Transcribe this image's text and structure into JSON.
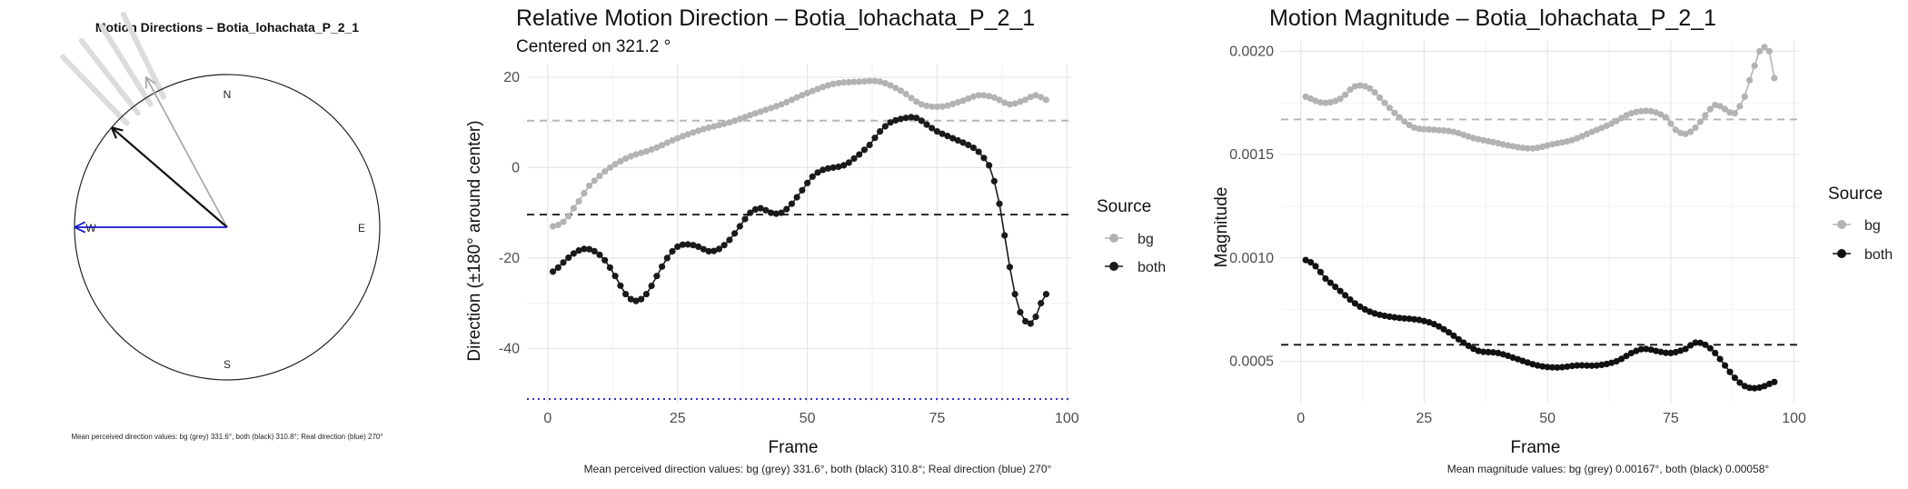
{
  "chart_data": [
    {
      "type": "polar-arrows",
      "title": "Motion Directions – Botia_lohachata_P_2_1",
      "compass_labels": [
        "N",
        "E",
        "S",
        "W"
      ],
      "arrows": [
        {
          "name": "bg",
          "angle_deg": 331.6,
          "color": "#aaaaaa"
        },
        {
          "name": "both",
          "angle_deg": 310.8,
          "color": "#111111"
        },
        {
          "name": "real",
          "angle_deg": 270,
          "color": "#1515c8"
        }
      ],
      "faint_traces_deg": [
        316,
        322,
        328,
        334
      ],
      "caption": "Mean perceived direction values: bg (grey) 331.6°, both (black) 310.8°; Real direction (blue) 270°"
    },
    {
      "type": "line",
      "title": "Relative Motion Direction – Botia_lohachata_P_2_1",
      "subtitle": "Centered on  321.2 °",
      "xlabel": "Frame",
      "ylabel": "Direction (±180° around center)",
      "xlim": [
        -4,
        101
      ],
      "ylim": [
        -52,
        23
      ],
      "xticks": [
        0,
        25,
        50,
        75,
        100
      ],
      "yticks": [
        20,
        0,
        -20,
        -40
      ],
      "legend_title": "Source",
      "hlines": [
        {
          "y": 10.4,
          "color": "#b3b3b3",
          "style": "dashed"
        },
        {
          "y": -10.4,
          "color": "#111111",
          "style": "dashed"
        },
        {
          "y": -51.2,
          "color": "#1515c8",
          "style": "dotted"
        }
      ],
      "series": [
        {
          "name": "bg",
          "color": "#b3b3b3",
          "x_start": 1,
          "knots": [
            [
              1,
              -13
            ],
            [
              3,
              -12
            ],
            [
              5,
              -9
            ],
            [
              8,
              -4
            ],
            [
              12,
              0
            ],
            [
              16,
              2.5
            ],
            [
              20,
              4
            ],
            [
              25,
              6.5
            ],
            [
              30,
              8.5
            ],
            [
              35,
              10
            ],
            [
              40,
              12
            ],
            [
              45,
              14
            ],
            [
              50,
              16.5
            ],
            [
              55,
              18.5
            ],
            [
              60,
              19
            ],
            [
              64,
              19
            ],
            [
              68,
              17
            ],
            [
              72,
              14
            ],
            [
              76,
              13.5
            ],
            [
              80,
              14.8
            ],
            [
              83,
              16
            ],
            [
              86,
              15.5
            ],
            [
              89,
              14
            ],
            [
              92,
              15
            ],
            [
              94,
              16
            ],
            [
              96,
              15
            ]
          ]
        },
        {
          "name": "both",
          "color": "#1a1a1a",
          "x_start": 1,
          "knots": [
            [
              1,
              -23
            ],
            [
              3,
              -21
            ],
            [
              5,
              -19
            ],
            [
              7,
              -18
            ],
            [
              9,
              -18.5
            ],
            [
              11,
              -20.5
            ],
            [
              13,
              -24
            ],
            [
              15,
              -28
            ],
            [
              17,
              -29.5
            ],
            [
              19,
              -28
            ],
            [
              21,
              -24
            ],
            [
              23,
              -20
            ],
            [
              25,
              -17.5
            ],
            [
              27,
              -17
            ],
            [
              29,
              -17.5
            ],
            [
              31,
              -18.5
            ],
            [
              33,
              -18
            ],
            [
              35,
              -16
            ],
            [
              37,
              -13
            ],
            [
              39,
              -10
            ],
            [
              41,
              -9
            ],
            [
              43,
              -10
            ],
            [
              45,
              -10
            ],
            [
              47,
              -8
            ],
            [
              49,
              -5
            ],
            [
              51,
              -2
            ],
            [
              53,
              -0.5
            ],
            [
              55,
              0
            ],
            [
              57,
              0.5
            ],
            [
              59,
              2
            ],
            [
              62,
              5
            ],
            [
              64,
              8
            ],
            [
              66,
              10
            ],
            [
              69,
              11
            ],
            [
              71,
              11
            ],
            [
              73,
              9.5
            ],
            [
              75,
              8
            ],
            [
              77,
              7
            ],
            [
              79,
              6
            ],
            [
              81,
              5
            ],
            [
              83,
              3.5
            ],
            [
              85,
              0.5
            ],
            [
              86,
              -3
            ],
            [
              87,
              -8
            ],
            [
              88,
              -15
            ],
            [
              89,
              -22
            ],
            [
              90,
              -28
            ],
            [
              91,
              -32
            ],
            [
              92,
              -34
            ],
            [
              93,
              -34.5
            ],
            [
              94,
              -33
            ],
            [
              95,
              -30
            ],
            [
              96,
              -28
            ]
          ]
        }
      ],
      "caption": "Mean perceived direction values: bg (grey) 331.6°, both (black) 310.8°; Real direction (blue) 270°"
    },
    {
      "type": "line",
      "title": "Motion Magnitude – Botia_lohachata_P_2_1",
      "xlabel": "Frame",
      "ylabel": "Magnitude",
      "xlim": [
        -4,
        101
      ],
      "ylim": [
        0.0003,
        0.00205
      ],
      "xticks": [
        0,
        25,
        50,
        75,
        100
      ],
      "yticks": [
        0.002,
        0.0015,
        0.001,
        0.0005
      ],
      "legend_title": "Source",
      "hlines": [
        {
          "y": 0.00167,
          "color": "#b3b3b3",
          "style": "dashed"
        },
        {
          "y": 0.00058,
          "color": "#111111",
          "style": "dashed"
        }
      ],
      "series": [
        {
          "name": "bg",
          "color": "#b3b3b3",
          "x_start": 1,
          "knots": [
            [
              1,
              0.00178
            ],
            [
              3,
              0.00176
            ],
            [
              5,
              0.00175
            ],
            [
              8,
              0.00177
            ],
            [
              11,
              0.00183
            ],
            [
              14,
              0.00182
            ],
            [
              17,
              0.00175
            ],
            [
              20,
              0.00168
            ],
            [
              23,
              0.00163
            ],
            [
              27,
              0.00162
            ],
            [
              31,
              0.00161
            ],
            [
              35,
              0.00158
            ],
            [
              39,
              0.00156
            ],
            [
              43,
              0.00154
            ],
            [
              47,
              0.00153
            ],
            [
              51,
              0.00155
            ],
            [
              55,
              0.00157
            ],
            [
              59,
              0.00161
            ],
            [
              63,
              0.00165
            ],
            [
              67,
              0.0017
            ],
            [
              71,
              0.00171
            ],
            [
              74,
              0.00168
            ],
            [
              76,
              0.00162
            ],
            [
              78,
              0.0016
            ],
            [
              80,
              0.00163
            ],
            [
              82,
              0.00169
            ],
            [
              84,
              0.00174
            ],
            [
              86,
              0.00172
            ],
            [
              88,
              0.0017
            ],
            [
              90,
              0.00178
            ],
            [
              91,
              0.00186
            ],
            [
              92,
              0.00193
            ],
            [
              93,
              0.002
            ],
            [
              94,
              0.00202
            ],
            [
              95,
              0.002
            ],
            [
              96,
              0.00187
            ]
          ]
        },
        {
          "name": "both",
          "color": "#111111",
          "x_start": 1,
          "knots": [
            [
              1,
              0.00099
            ],
            [
              3,
              0.00096
            ],
            [
              5,
              0.0009
            ],
            [
              8,
              0.00084
            ],
            [
              11,
              0.00078
            ],
            [
              14,
              0.00074
            ],
            [
              17,
              0.00072
            ],
            [
              20,
              0.00071
            ],
            [
              24,
              0.0007
            ],
            [
              27,
              0.00068
            ],
            [
              30,
              0.00064
            ],
            [
              33,
              0.00059
            ],
            [
              36,
              0.00055
            ],
            [
              40,
              0.00054
            ],
            [
              44,
              0.00051
            ],
            [
              48,
              0.00048
            ],
            [
              52,
              0.00047
            ],
            [
              56,
              0.00048
            ],
            [
              60,
              0.00048
            ],
            [
              64,
              0.0005
            ],
            [
              68,
              0.00055
            ],
            [
              70,
              0.00056
            ],
            [
              72,
              0.00055
            ],
            [
              75,
              0.00054
            ],
            [
              78,
              0.00056
            ],
            [
              80,
              0.00059
            ],
            [
              82,
              0.00058
            ],
            [
              84,
              0.00054
            ],
            [
              86,
              0.00048
            ],
            [
              88,
              0.00042
            ],
            [
              90,
              0.00038
            ],
            [
              92,
              0.00037
            ],
            [
              94,
              0.00038
            ],
            [
              96,
              0.0004
            ]
          ]
        }
      ],
      "caption": "Mean magnitude values: bg (grey) 0.00167°, both (black) 0.00058°"
    }
  ]
}
